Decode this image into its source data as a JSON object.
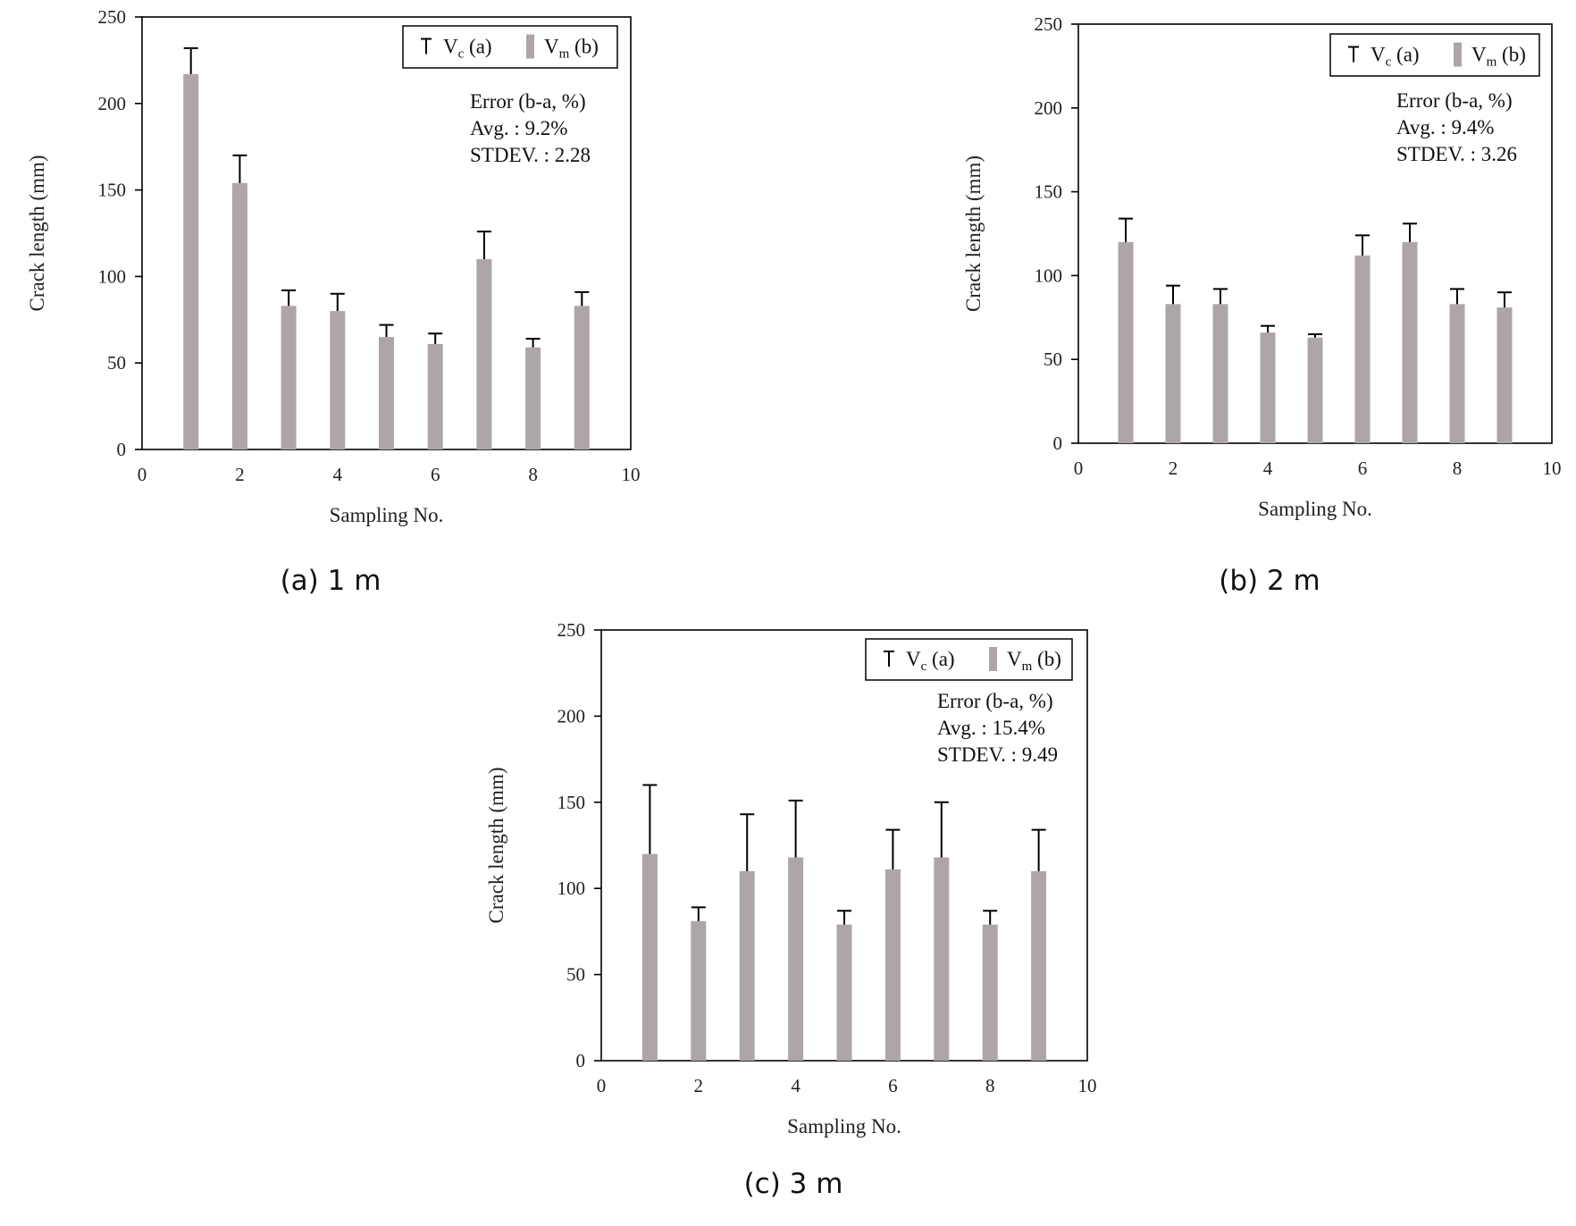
{
  "colors": {
    "bar": "#aea6a6",
    "axis": "#000000",
    "text": "#222222"
  },
  "chart_data": [
    {
      "type": "bar",
      "caption": "(a) 1 m",
      "xlabel": "Sampling No.",
      "ylabel": "Crack length (mm)",
      "xlim": [
        0,
        10
      ],
      "ylim": [
        0,
        250
      ],
      "xticks": [
        "0",
        "2",
        "4",
        "6",
        "8",
        "10"
      ],
      "yticks": [
        "0",
        "50",
        "100",
        "150",
        "200",
        "250"
      ],
      "legend": {
        "err_label": "V",
        "err_sub": "c",
        "err_suffix": " (a)",
        "bar_label": "V",
        "bar_sub": "m",
        "bar_suffix": " (b)",
        "position": "top-right"
      },
      "annotation": [
        "Error (b-a, %)",
        "Avg. : 9.2%",
        "STDEV. : 2.28"
      ],
      "x": [
        1,
        2,
        3,
        4,
        5,
        6,
        7,
        8,
        9
      ],
      "series": [
        {
          "name": "Vm (b)",
          "values": [
            217,
            154,
            83,
            80,
            65,
            61,
            110,
            59,
            83
          ]
        },
        {
          "name": "Vc (a)",
          "values": [
            232,
            170,
            92,
            90,
            72,
            67,
            126,
            64,
            91
          ]
        }
      ]
    },
    {
      "type": "bar",
      "caption": "(b) 2 m",
      "xlabel": "Sampling No.",
      "ylabel": "Crack length (mm)",
      "xlim": [
        0,
        10
      ],
      "ylim": [
        0,
        250
      ],
      "xticks": [
        "0",
        "2",
        "4",
        "6",
        "8",
        "10"
      ],
      "yticks": [
        "0",
        "50",
        "100",
        "150",
        "200",
        "250"
      ],
      "legend": {
        "err_label": "V",
        "err_sub": "c",
        "err_suffix": " (a)",
        "bar_label": "V",
        "bar_sub": "m",
        "bar_suffix": " (b)",
        "position": "top-right"
      },
      "annotation": [
        "Error (b-a, %)",
        "Avg. : 9.4%",
        "STDEV. : 3.26"
      ],
      "x": [
        1,
        2,
        3,
        4,
        5,
        6,
        7,
        8,
        9
      ],
      "series": [
        {
          "name": "Vm (b)",
          "values": [
            120,
            83,
            83,
            66,
            63,
            112,
            120,
            83,
            81
          ]
        },
        {
          "name": "Vc (a)",
          "values": [
            134,
            94,
            92,
            70,
            65,
            124,
            131,
            92,
            90
          ]
        }
      ]
    },
    {
      "type": "bar",
      "caption": "(c) 3 m",
      "xlabel": "Sampling No.",
      "ylabel": "Crack length (mm)",
      "xlim": [
        0,
        10
      ],
      "ylim": [
        0,
        250
      ],
      "xticks": [
        "0",
        "2",
        "4",
        "6",
        "8",
        "10"
      ],
      "yticks": [
        "0",
        "50",
        "100",
        "150",
        "200",
        "250"
      ],
      "legend": {
        "err_label": "V",
        "err_sub": "c",
        "err_suffix": " (a)",
        "bar_label": "V",
        "bar_sub": "m",
        "bar_suffix": " (b)",
        "position": "top-right"
      },
      "annotation": [
        "Error (b-a, %)",
        "Avg. : 15.4%",
        "STDEV. : 9.49"
      ],
      "x": [
        1,
        2,
        3,
        4,
        5,
        6,
        7,
        8,
        9
      ],
      "series": [
        {
          "name": "Vm (b)",
          "values": [
            120,
            81,
            110,
            118,
            79,
            111,
            118,
            79,
            110
          ]
        },
        {
          "name": "Vc (a)",
          "values": [
            160,
            89,
            143,
            151,
            87,
            134,
            150,
            87,
            134
          ]
        }
      ]
    }
  ]
}
